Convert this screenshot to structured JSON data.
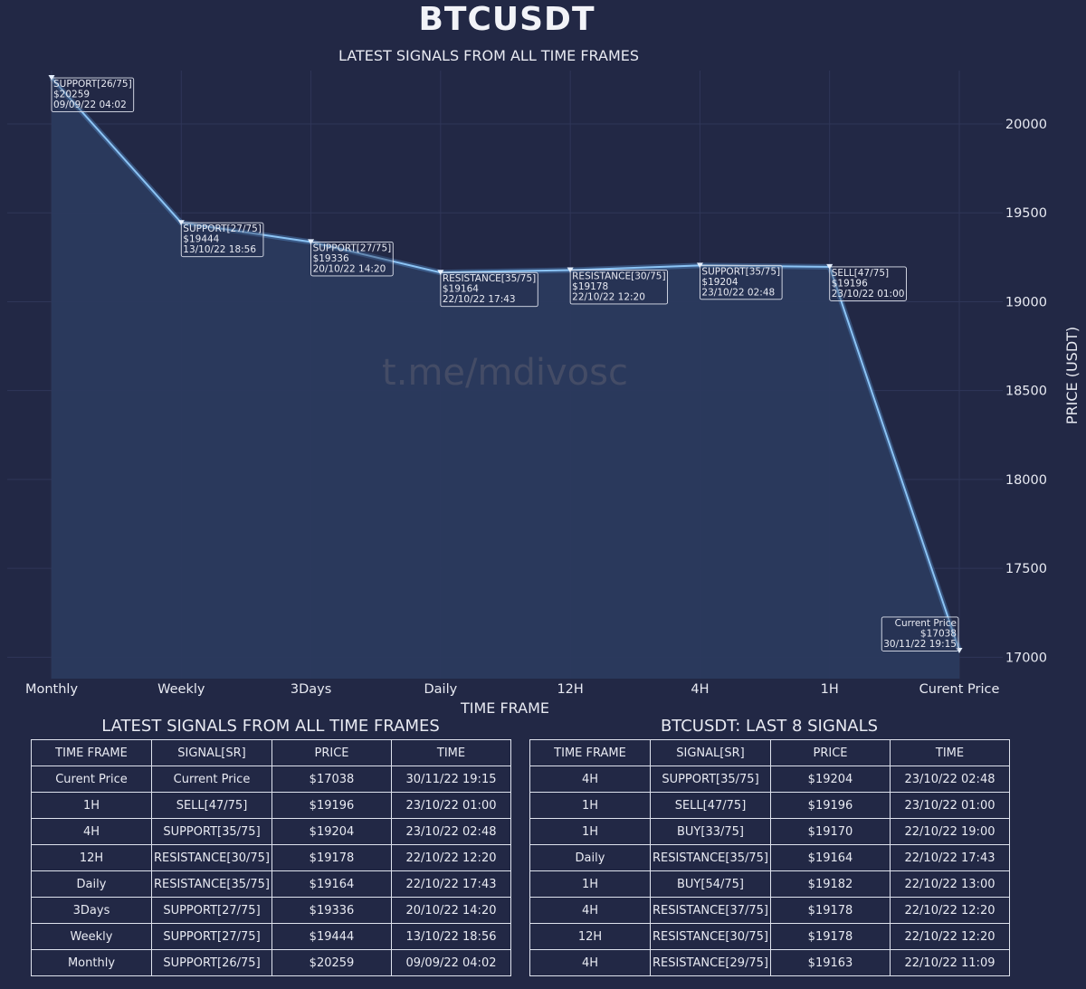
{
  "header": {
    "title": "BTCUSDT"
  },
  "watermark": "t.me/mdivosc",
  "chart_data": {
    "type": "area",
    "title": "LATEST  SIGNALS FROM ALL TIME FRAMES",
    "xlabel": "TIME FRAME",
    "ylabel": "PRICE (USDT)",
    "categories": [
      "Monthly",
      "Weekly",
      "3Days",
      "Daily",
      "12H",
      "4H",
      "1H",
      "Curent Price"
    ],
    "values": [
      20259,
      19444,
      19336,
      19164,
      19178,
      19204,
      19196,
      17038
    ],
    "ylim": [
      16880,
      20300
    ],
    "yticks": [
      17000,
      17500,
      18000,
      18500,
      19000,
      19500,
      20000
    ],
    "grid": true,
    "line_color": "#8cc4f5",
    "fill_color": "#2b3a5e",
    "annotations": [
      [
        "SUPPORT[26/75]",
        "$20259",
        "09/09/22 04:02"
      ],
      [
        "SUPPORT[27/75]",
        "$19444",
        "13/10/22 18:56"
      ],
      [
        "SUPPORT[27/75]",
        "$19336",
        "20/10/22 14:20"
      ],
      [
        "RESISTANCE[35/75]",
        "$19164",
        "22/10/22 17:43"
      ],
      [
        "RESISTANCE[30/75]",
        "$19178",
        "22/10/22 12:20"
      ],
      [
        "SUPPORT[35/75]",
        "$19204",
        "23/10/22 02:48"
      ],
      [
        "SELL[47/75]",
        "$19196",
        "23/10/22 01:00"
      ],
      [
        "Current Price",
        "$17038",
        "30/11/22 19:15"
      ]
    ]
  },
  "table_left": {
    "title": "LATEST  SIGNALS FROM ALL TIME FRAMES",
    "columns": [
      "TIME FRAME",
      "SIGNAL[SR]",
      "PRICE",
      "TIME"
    ],
    "rows": [
      [
        "Curent Price",
        "Current Price",
        "$17038",
        "30/11/22 19:15"
      ],
      [
        "1H",
        "SELL[47/75]",
        "$19196",
        "23/10/22 01:00"
      ],
      [
        "4H",
        "SUPPORT[35/75]",
        "$19204",
        "23/10/22 02:48"
      ],
      [
        "12H",
        "RESISTANCE[30/75]",
        "$19178",
        "22/10/22 12:20"
      ],
      [
        "Daily",
        "RESISTANCE[35/75]",
        "$19164",
        "22/10/22 17:43"
      ],
      [
        "3Days",
        "SUPPORT[27/75]",
        "$19336",
        "20/10/22 14:20"
      ],
      [
        "Weekly",
        "SUPPORT[27/75]",
        "$19444",
        "13/10/22 18:56"
      ],
      [
        "Monthly",
        "SUPPORT[26/75]",
        "$20259",
        "09/09/22 04:02"
      ]
    ]
  },
  "table_right": {
    "title": "BTCUSDT: LAST 8 SIGNALS",
    "columns": [
      "TIME FRAME",
      "SIGNAL[SR]",
      "PRICE",
      "TIME"
    ],
    "rows": [
      [
        "4H",
        "SUPPORT[35/75]",
        "$19204",
        "23/10/22 02:48"
      ],
      [
        "1H",
        "SELL[47/75]",
        "$19196",
        "23/10/22 01:00"
      ],
      [
        "1H",
        "BUY[33/75]",
        "$19170",
        "22/10/22 19:00"
      ],
      [
        "Daily",
        "RESISTANCE[35/75]",
        "$19164",
        "22/10/22 17:43"
      ],
      [
        "1H",
        "BUY[54/75]",
        "$19182",
        "22/10/22 13:00"
      ],
      [
        "4H",
        "RESISTANCE[37/75]",
        "$19178",
        "22/10/22 12:20"
      ],
      [
        "12H",
        "RESISTANCE[30/75]",
        "$19178",
        "22/10/22 12:20"
      ],
      [
        "4H",
        "RESISTANCE[29/75]",
        "$19163",
        "22/10/22 11:09"
      ]
    ]
  }
}
